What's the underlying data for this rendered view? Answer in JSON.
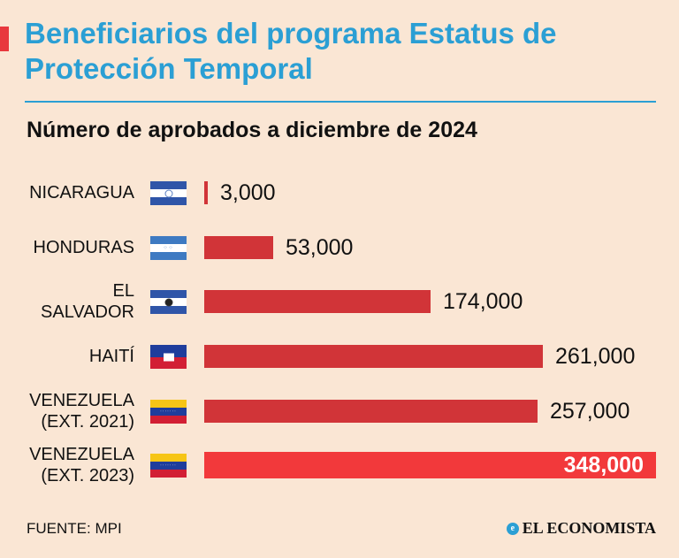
{
  "header": {
    "title": "Beneficiarios del programa Estatus de Protección Temporal",
    "subtitle": "Número de aprobados a diciembre de 2024"
  },
  "colors": {
    "title": "#2b9fd4",
    "bar": "#d13438",
    "bar_highlight": "#f2393b",
    "background": "#fae6d4"
  },
  "chart_data": {
    "type": "bar",
    "orientation": "horizontal",
    "categories": [
      "NICARAGUA",
      "HONDURAS",
      "EL SALVADOR",
      "HAITÍ",
      "VENEZUELA (EXT. 2021)",
      "VENEZUELA (EXT. 2023)"
    ],
    "category_lines": [
      [
        "NICARAGUA"
      ],
      [
        "HONDURAS"
      ],
      [
        "EL",
        "SALVADOR"
      ],
      [
        "HAITÍ"
      ],
      [
        "VENEZUELA",
        "(EXT. 2021)"
      ],
      [
        "VENEZUELA",
        "(EXT. 2023)"
      ]
    ],
    "flags": [
      "nicaragua-flag",
      "honduras-flag",
      "el-salvador-flag",
      "haiti-flag",
      "venezuela-flag",
      "venezuela-flag"
    ],
    "values": [
      3000,
      53000,
      174000,
      261000,
      257000,
      348000
    ],
    "value_labels": [
      "3,000",
      "53,000",
      "174,000",
      "261,000",
      "257,000",
      "348,000"
    ],
    "highlight_index": 5,
    "title": "Número de aprobados a diciembre de 2024"
  },
  "footer": {
    "source": "FUENTE: MPI",
    "logo": "EL ECONOMISTA"
  }
}
